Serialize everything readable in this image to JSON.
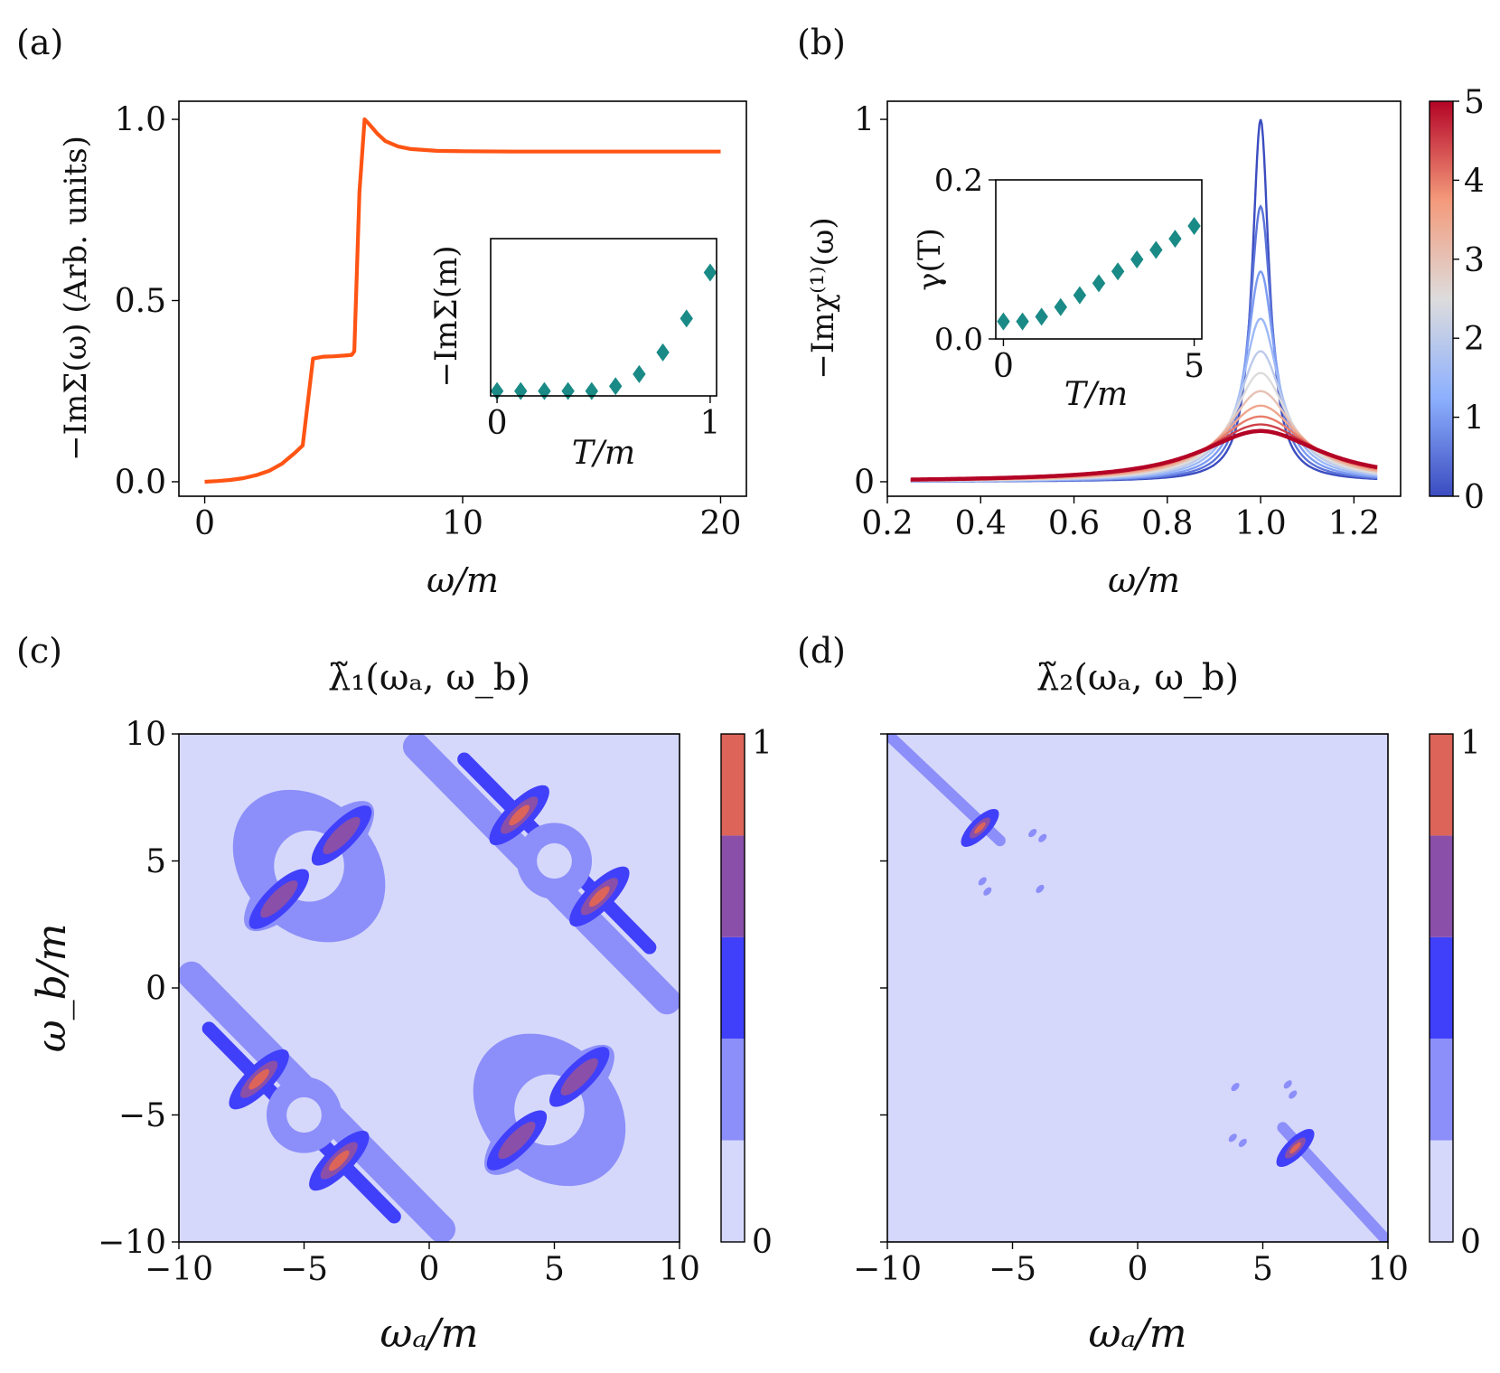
{
  "figure": {
    "panel_labels": [
      "(a)",
      "(b)",
      "(c)",
      "(d)"
    ]
  },
  "chart_data": [
    {
      "id": "a",
      "type": "line",
      "xlabel": "ω/m",
      "ylabel": "−ImΣ(ω) (Arb. units)",
      "xlim": [
        -1,
        21
      ],
      "ylim": [
        -0.04,
        1.05
      ],
      "xticks": [
        0,
        10,
        20
      ],
      "xtick_labels": [
        "0",
        "10",
        "20"
      ],
      "yticks": [
        0,
        0.5,
        1.0
      ],
      "ytick_labels": [
        "0.0",
        "0.5",
        "1.0"
      ],
      "color": "#ff5414",
      "series": [
        {
          "x": [
            0,
            0.5,
            1.0,
            1.5,
            2.0,
            2.5,
            3.0,
            3.5,
            3.8,
            4.0,
            4.2,
            4.6,
            5.0,
            5.4,
            5.7,
            5.8,
            6.0,
            6.2,
            6.4,
            6.7,
            7.0,
            7.5,
            8.0,
            9.0,
            10,
            12,
            14,
            16,
            18,
            20
          ],
          "y": [
            0.0,
            0.002,
            0.005,
            0.01,
            0.018,
            0.03,
            0.05,
            0.08,
            0.1,
            0.22,
            0.34,
            0.345,
            0.346,
            0.348,
            0.35,
            0.36,
            0.8,
            1.0,
            0.985,
            0.96,
            0.94,
            0.925,
            0.918,
            0.913,
            0.912,
            0.911,
            0.911,
            0.911,
            0.911,
            0.911
          ]
        }
      ],
      "inset": {
        "type": "scatter",
        "xlabel": "T/m",
        "ylabel": "−ImΣ(m)",
        "xlim": [
          -0.03,
          1.03
        ],
        "ylim": [
          -0.02,
          0.63
        ],
        "xticks": [
          0,
          1
        ],
        "xtick_labels": [
          "0",
          "1"
        ],
        "marker": "diamond",
        "color": "#1a8a86",
        "x": [
          0,
          0.111,
          0.222,
          0.333,
          0.444,
          0.556,
          0.667,
          0.778,
          0.889,
          1.0
        ],
        "y": [
          0.0,
          0.0,
          0.0,
          0.0,
          0.0,
          0.02,
          0.07,
          0.16,
          0.3,
          0.49
        ]
      }
    },
    {
      "id": "b",
      "type": "line",
      "xlabel": "ω/m",
      "ylabel": "−Imχ⁽¹⁾(ω)",
      "xlim": [
        0.2,
        1.3
      ],
      "ylim": [
        -0.04,
        1.05
      ],
      "xticks": [
        0.2,
        0.4,
        0.6,
        0.8,
        1.0,
        1.2
      ],
      "xtick_labels": [
        "0.2",
        "0.4",
        "0.6",
        "0.8",
        "1.0",
        "1.2"
      ],
      "yticks": [
        0,
        1
      ],
      "ytick_labels": [
        "0",
        "1"
      ],
      "family": {
        "description_param": "T/m",
        "model": "lorentzian",
        "x_range": [
          0.25,
          1.25
        ],
        "center": 1.0,
        "param_values": [
          0,
          0.5,
          1,
          1.5,
          2,
          2.5,
          3,
          3.5,
          4,
          4.5,
          5
        ],
        "peak_heights": [
          1.0,
          0.76,
          0.58,
          0.45,
          0.36,
          0.3,
          0.25,
          0.21,
          0.18,
          0.158,
          0.14
        ],
        "half_widths": [
          0.022,
          0.029,
          0.038,
          0.049,
          0.061,
          0.073,
          0.088,
          0.104,
          0.122,
          0.14,
          0.158
        ]
      },
      "colorbar": {
        "cmap": "coolwarm",
        "range": [
          0,
          5
        ],
        "ticks": [
          0,
          1,
          2,
          3,
          4,
          5
        ],
        "tick_labels": [
          "0",
          "1",
          "2",
          "3",
          "4",
          "5"
        ]
      },
      "inset": {
        "type": "scatter",
        "xlabel": "T/m",
        "ylabel": "γ(T)",
        "xlim": [
          -0.2,
          5.2
        ],
        "ylim": [
          0.0,
          0.2
        ],
        "xticks": [
          0,
          5
        ],
        "xtick_labels": [
          "0",
          "5"
        ],
        "yticks": [
          0.0,
          0.2
        ],
        "ytick_labels": [
          "0.0",
          "0.2"
        ],
        "marker": "diamond",
        "color": "#1a8a86",
        "x": [
          0,
          0.5,
          1.0,
          1.5,
          2.0,
          2.5,
          3.0,
          3.5,
          4.0,
          4.5,
          5.0
        ],
        "y": [
          0.022,
          0.022,
          0.028,
          0.04,
          0.055,
          0.07,
          0.085,
          0.1,
          0.112,
          0.126,
          0.142
        ]
      }
    },
    {
      "id": "c",
      "type": "heatmap",
      "title": "λ̃₁(ωₐ, ω_b)",
      "xlabel": "ωₐ/m",
      "ylabel": "ω_b/m",
      "xlim": [
        -10,
        10
      ],
      "ylim": [
        -10,
        10
      ],
      "xticks": [
        -10,
        -5,
        0,
        5,
        10
      ],
      "xtick_labels": [
        "−10",
        "−5",
        "0",
        "5",
        "10"
      ],
      "yticks": [
        -10,
        -5,
        0,
        5,
        10
      ],
      "ytick_labels": [
        "−10",
        "−5",
        "0",
        "5",
        "10"
      ],
      "levels_colors": [
        "#d6d8fb",
        "#8c8ff9",
        "#4040fb",
        "#8a4fa8",
        "#dc6459"
      ],
      "background_color": "#d6d8fb",
      "colorbar": {
        "range": [
          0,
          1
        ],
        "tick_labels": [
          "0",
          "1"
        ]
      },
      "features": {
        "stripes": [
          {
            "from": [
              -9.5,
              0.5
            ],
            "to": [
              0.5,
              -9.5
            ],
            "level": 1,
            "width": 1.1
          },
          {
            "from": [
              -0.5,
              9.5
            ],
            "to": [
              9.5,
              -0.5
            ],
            "level": 1,
            "width": 1.1
          }
        ],
        "hotspots": [
          {
            "center": [
              -6.8,
              -3.6
            ],
            "angle": -45,
            "level": 4
          },
          {
            "center": [
              -3.6,
              -6.8
            ],
            "angle": -45,
            "level": 4
          },
          {
            "center": [
              3.6,
              6.8
            ],
            "angle": -45,
            "level": 4
          },
          {
            "center": [
              6.8,
              3.6
            ],
            "angle": -45,
            "level": 4
          },
          {
            "center": [
              -6.0,
              3.5
            ],
            "angle": -45,
            "level": 3
          },
          {
            "center": [
              -3.5,
              6.0
            ],
            "angle": -45,
            "level": 3
          },
          {
            "center": [
              3.5,
              -6.0
            ],
            "angle": -45,
            "level": 3
          },
          {
            "center": [
              6.0,
              -3.5
            ],
            "angle": -45,
            "level": 3
          }
        ],
        "stars": [
          {
            "center": [
              -4.8,
              4.8
            ]
          },
          {
            "center": [
              4.8,
              -4.8
            ]
          }
        ]
      }
    },
    {
      "id": "d",
      "type": "heatmap",
      "title": "λ̃₂(ωₐ, ω_b)",
      "xlabel": "ωₐ/m",
      "xlim": [
        -10,
        10
      ],
      "ylim": [
        -10,
        10
      ],
      "xticks": [
        -10,
        -5,
        0,
        5,
        10
      ],
      "xtick_labels": [
        "−10",
        "−5",
        "0",
        "5",
        "10"
      ],
      "levels_colors": [
        "#d6d8fb",
        "#8c8ff9",
        "#4040fb",
        "#8a4fa8",
        "#dc6459"
      ],
      "background_color": "#d6d8fb",
      "colorbar": {
        "range": [
          0,
          1
        ],
        "tick_labels": [
          "0",
          "1"
        ]
      },
      "features": {
        "streaks": [
          {
            "from": [
              -10,
              10
            ],
            "to": [
              -5.5,
              5.8
            ],
            "hot": [
              -6.3,
              6.3
            ]
          },
          {
            "from": [
              10,
              -10
            ],
            "to": [
              5.8,
              -5.5
            ],
            "hot": [
              6.3,
              -6.3
            ]
          }
        ],
        "dots": [
          [
            -4.2,
            6.1
          ],
          [
            -3.8,
            5.9
          ],
          [
            -6.2,
            4.2
          ],
          [
            -6.0,
            3.8
          ],
          [
            -3.9,
            3.9
          ],
          [
            4.2,
            -6.1
          ],
          [
            3.8,
            -5.9
          ],
          [
            6.2,
            -4.2
          ],
          [
            6.0,
            -3.8
          ],
          [
            3.9,
            -3.9
          ]
        ]
      }
    }
  ]
}
